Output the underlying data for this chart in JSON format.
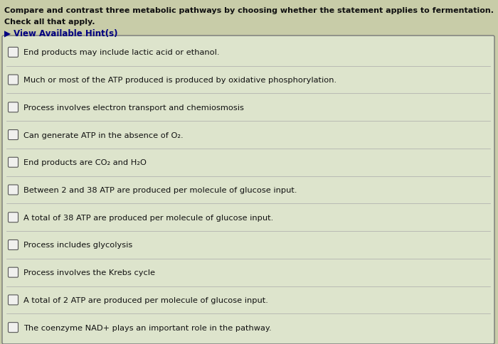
{
  "title_line1": "Compare and contrast three metabolic pathways by choosing whether the statement applies to fermentation.",
  "title_line2": "Check all that apply.",
  "hint_text": "▶ View Available Hint(s)",
  "items": [
    "End products may include lactic acid or ethanol.",
    "Much or most of the ATP produced is produced by oxidative phosphorylation.",
    "Process involves electron transport and chemiosmosis",
    "Can generate ATP in the absence of O₂.",
    "End products are CO₂ and H₂O",
    "Between 2 and 38 ATP are produced per molecule of glucose input.",
    "A total of 38 ATP are produced per molecule of glucose input.",
    "Process includes glycolysis",
    "Process involves the Krebs cycle",
    "A total of 2 ATP are produced per molecule of glucose input.",
    "The coenzyme NAD+ plays an important role in the pathway."
  ],
  "bg_color": "#c8cca8",
  "box_bg_color": "#dde4cc",
  "box_border_color": "#777777",
  "title_color": "#111111",
  "hint_color": "#000080",
  "item_color": "#111111",
  "sep_color": "#aaaaaa",
  "title_fontsize": 8.0,
  "item_fontsize": 8.2,
  "hint_fontsize": 8.5
}
